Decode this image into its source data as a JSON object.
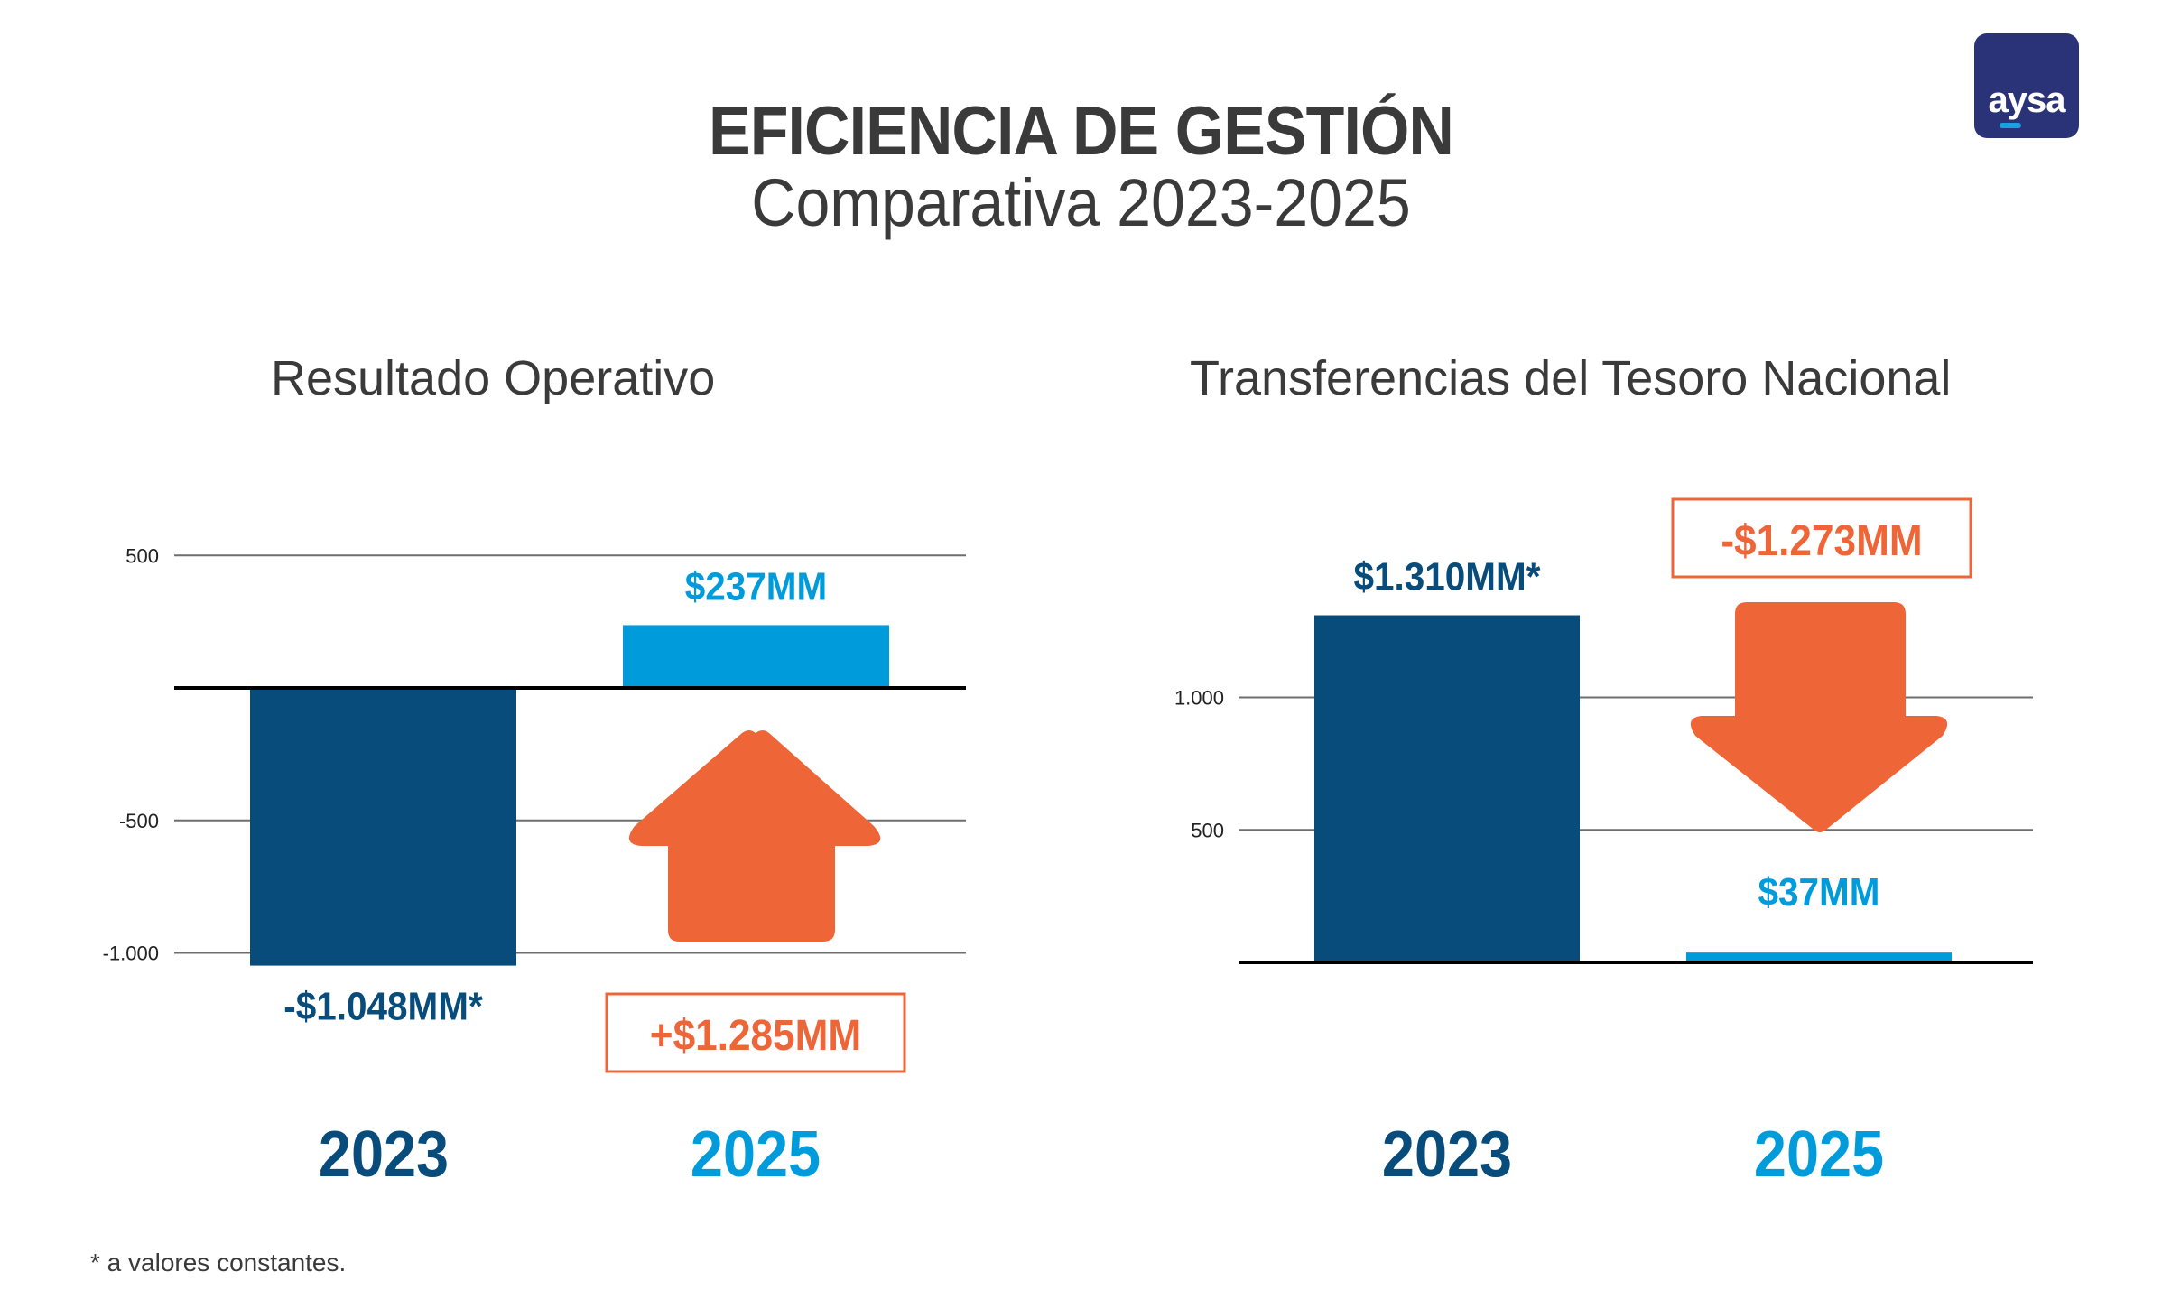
{
  "header": {
    "title": "EFICIENCIA DE GESTIÓN",
    "subtitle": "Comparativa 2023-2025",
    "logo_text": "aysa"
  },
  "colors": {
    "dark_blue": "#084c7c",
    "light_blue": "#009bdb",
    "orange": "#ee6538",
    "text": "#3a3a3a",
    "gridline": "#6e6e6e",
    "axis": "#000000",
    "logo_bg": "#2b3378"
  },
  "footnote": "* a valores constantes.",
  "chart_data": [
    {
      "type": "bar",
      "title": "Resultado Operativo",
      "categories": [
        "2023",
        "2025"
      ],
      "values": [
        -1048,
        237
      ],
      "data_labels": [
        "-$1.048MM*",
        "$237MM"
      ],
      "yticks": [
        500,
        -500,
        -1000
      ],
      "ytick_labels": [
        "500",
        "-500",
        "-1.000"
      ],
      "ylim": [
        -1100,
        500
      ],
      "grid": true,
      "units": "millones de pesos (MM)",
      "change": {
        "label": "+$1.285MM",
        "value": 1285,
        "direction": "up",
        "icon": "arrow-up-icon"
      }
    },
    {
      "type": "bar",
      "title": "Transferencias del Tesoro Nacional",
      "categories": [
        "2023",
        "2025"
      ],
      "values": [
        1310,
        37
      ],
      "data_labels": [
        "$1.310MM*",
        "$37MM"
      ],
      "yticks": [
        1000,
        500
      ],
      "ytick_labels": [
        "1.000",
        "500"
      ],
      "ylim": [
        0,
        1350
      ],
      "grid": true,
      "units": "millones de pesos (MM)",
      "change": {
        "label": "-$1.273MM",
        "value": -1273,
        "direction": "down",
        "icon": "arrow-down-icon"
      }
    }
  ]
}
